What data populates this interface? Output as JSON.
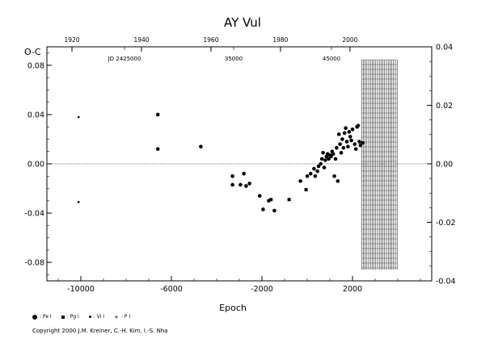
{
  "chart_data": {
    "type": "scatter",
    "title": "AY Vul",
    "ylabel": "O-C",
    "xlabel": "Epoch",
    "xlim": [
      -11500,
      5500
    ],
    "ylim": [
      -0.095,
      0.095
    ],
    "right_ylim": [
      -0.04,
      0.04
    ],
    "x_ticks": [
      "-10000",
      "-6000",
      "-2000",
      "2000"
    ],
    "y_ticks": [
      "0.08",
      "0.04",
      "0.00",
      "-0.04",
      "-0.08"
    ],
    "right_y_ticks": [
      "0.04",
      "0.02",
      "0.00",
      "-0.02",
      "-0.04"
    ],
    "top_year_ticks": [
      "1920",
      "1940",
      "1960",
      "1980",
      "2000"
    ],
    "top_jd_labels": [
      "JD 2425000",
      "35000",
      "45000"
    ],
    "hatched_region_start": 2400,
    "series": [
      {
        "name": "Pe",
        "marker": "circle",
        "points": [
          [
            -6600,
            0.04
          ],
          [
            -6600,
            0.012
          ],
          [
            -4700,
            0.014
          ],
          [
            -3300,
            -0.01
          ],
          [
            -3300,
            -0.017
          ],
          [
            -2950,
            -0.017
          ],
          [
            -2800,
            -0.008
          ],
          [
            -2700,
            -0.018
          ],
          [
            -2550,
            -0.016
          ],
          [
            -2100,
            -0.026
          ],
          [
            -1950,
            -0.037
          ],
          [
            -1700,
            -0.03
          ],
          [
            -1450,
            -0.038
          ],
          [
            -300,
            -0.014
          ],
          [
            0,
            -0.01
          ],
          [
            150,
            -0.008
          ],
          [
            300,
            -0.004
          ],
          [
            350,
            -0.01
          ],
          [
            450,
            -0.006
          ],
          [
            500,
            -0.002
          ],
          [
            600,
            0.0
          ],
          [
            650,
            0.004
          ],
          [
            700,
            0.009
          ],
          [
            750,
            -0.003
          ],
          [
            800,
            0.003
          ],
          [
            850,
            0.006
          ],
          [
            900,
            0.008
          ],
          [
            950,
            0.004
          ],
          [
            1000,
            0.007
          ],
          [
            1050,
            0.006
          ],
          [
            1100,
            0.01
          ],
          [
            1150,
            0.008
          ],
          [
            1200,
            -0.01
          ],
          [
            1250,
            0.004
          ],
          [
            1300,
            0.013
          ],
          [
            1350,
            -0.014
          ],
          [
            1400,
            0.024
          ],
          [
            1450,
            0.016
          ],
          [
            1500,
            0.009
          ],
          [
            1550,
            0.02
          ],
          [
            1600,
            0.013
          ],
          [
            1650,
            0.025
          ],
          [
            1700,
            0.029
          ],
          [
            1750,
            0.018
          ],
          [
            1800,
            0.014
          ],
          [
            1850,
            0.026
          ],
          [
            1900,
            0.022
          ],
          [
            1950,
            0.019
          ],
          [
            2000,
            0.028
          ],
          [
            2100,
            0.016
          ],
          [
            2150,
            0.012
          ],
          [
            2200,
            0.03
          ],
          [
            2250,
            0.031
          ],
          [
            2300,
            0.018
          ],
          [
            2350,
            0.015
          ],
          [
            2450,
            0.017
          ]
        ]
      },
      {
        "name": "Pg",
        "marker": "square",
        "points": [
          [
            -1600,
            -0.029
          ],
          [
            -800,
            -0.029
          ],
          [
            -50,
            -0.021
          ]
        ]
      },
      {
        "name": "Vi",
        "marker": "small-dot",
        "points": [
          [
            -10100,
            0.038
          ],
          [
            -10100,
            -0.031
          ]
        ]
      },
      {
        "name": "P",
        "marker": "plus",
        "points": []
      }
    ]
  },
  "legend": [
    {
      "symbol": "circle",
      "label": ": Pe I"
    },
    {
      "symbol": "square",
      "label": ": Pg I"
    },
    {
      "symbol": "small-dot",
      "label": ": Vi I"
    },
    {
      "symbol": "plus",
      "label": ": P I"
    }
  ],
  "copyright": "Copyright 2000 J.M. Kreiner, C.-H. Kim, I.-S. Nha"
}
